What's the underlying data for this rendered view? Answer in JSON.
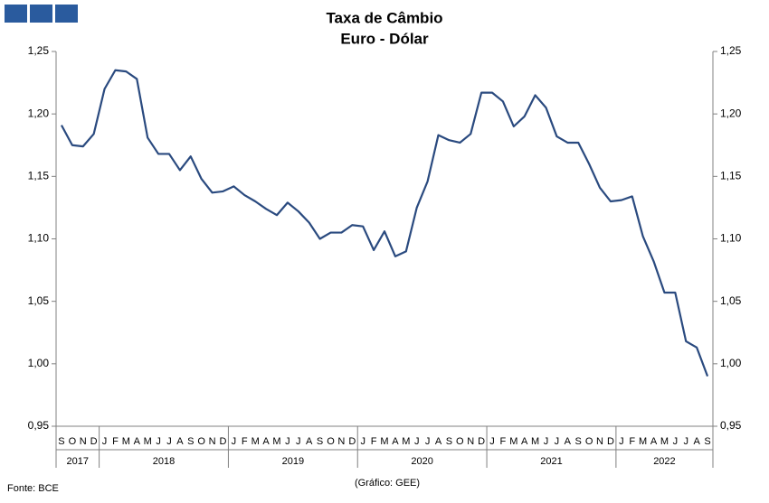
{
  "chart_data": {
    "type": "line",
    "title": "Taxa de Câmbio",
    "subtitle": "Euro - Dólar",
    "source": "Fonte: BCE",
    "credit": "(Gráfico: GEE)",
    "categories": [
      "S",
      "O",
      "N",
      "D",
      "J",
      "F",
      "M",
      "A",
      "M",
      "J",
      "J",
      "A",
      "S",
      "O",
      "N",
      "D",
      "J",
      "F",
      "M",
      "A",
      "M",
      "J",
      "J",
      "A",
      "S",
      "O",
      "N",
      "D",
      "J",
      "F",
      "M",
      "A",
      "M",
      "J",
      "J",
      "A",
      "S",
      "O",
      "N",
      "D",
      "J",
      "F",
      "M",
      "A",
      "M",
      "J",
      "J",
      "A",
      "S",
      "O",
      "N",
      "D",
      "J",
      "F",
      "M",
      "A",
      "M",
      "J",
      "J",
      "A",
      "S"
    ],
    "years": [
      "2017",
      "2018",
      "2019",
      "2020",
      "2021",
      "2022"
    ],
    "values": [
      1.191,
      1.175,
      1.174,
      1.184,
      1.22,
      1.235,
      1.234,
      1.228,
      1.181,
      1.168,
      1.168,
      1.155,
      1.166,
      1.148,
      1.137,
      1.138,
      1.142,
      1.135,
      1.13,
      1.124,
      1.119,
      1.129,
      1.122,
      1.113,
      1.1,
      1.105,
      1.105,
      1.111,
      1.11,
      1.091,
      1.106,
      1.086,
      1.09,
      1.125,
      1.146,
      1.183,
      1.179,
      1.177,
      1.184,
      1.217,
      1.217,
      1.21,
      1.19,
      1.198,
      1.215,
      1.205,
      1.182,
      1.177,
      1.177,
      1.16,
      1.141,
      1.13,
      1.131,
      1.134,
      1.102,
      1.082,
      1.057,
      1.057,
      1.018,
      1.013,
      0.99
    ],
    "color": "#2a4a7f",
    "ylim": [
      0.95,
      1.25
    ],
    "yticks": [
      {
        "value": 0.95,
        "label": "0,95"
      },
      {
        "value": 1.0,
        "label": "1,00"
      },
      {
        "value": 1.05,
        "label": "1,05"
      },
      {
        "value": 1.1,
        "label": "1,10"
      },
      {
        "value": 1.15,
        "label": "1,15"
      },
      {
        "value": 1.2,
        "label": "1,20"
      },
      {
        "value": 1.25,
        "label": "1,25"
      }
    ],
    "y2lim": [
      0.95,
      1.25
    ],
    "y2ticks": [
      {
        "value": 0.95,
        "label": "0,95"
      },
      {
        "value": 1.0,
        "label": "1,00"
      },
      {
        "value": 1.05,
        "label": "1,05"
      },
      {
        "value": 1.1,
        "label": "1,10"
      },
      {
        "value": 1.15,
        "label": "1,15"
      },
      {
        "value": 1.2,
        "label": "1,20"
      },
      {
        "value": 1.25,
        "label": "1,25"
      }
    ],
    "grid": false
  }
}
